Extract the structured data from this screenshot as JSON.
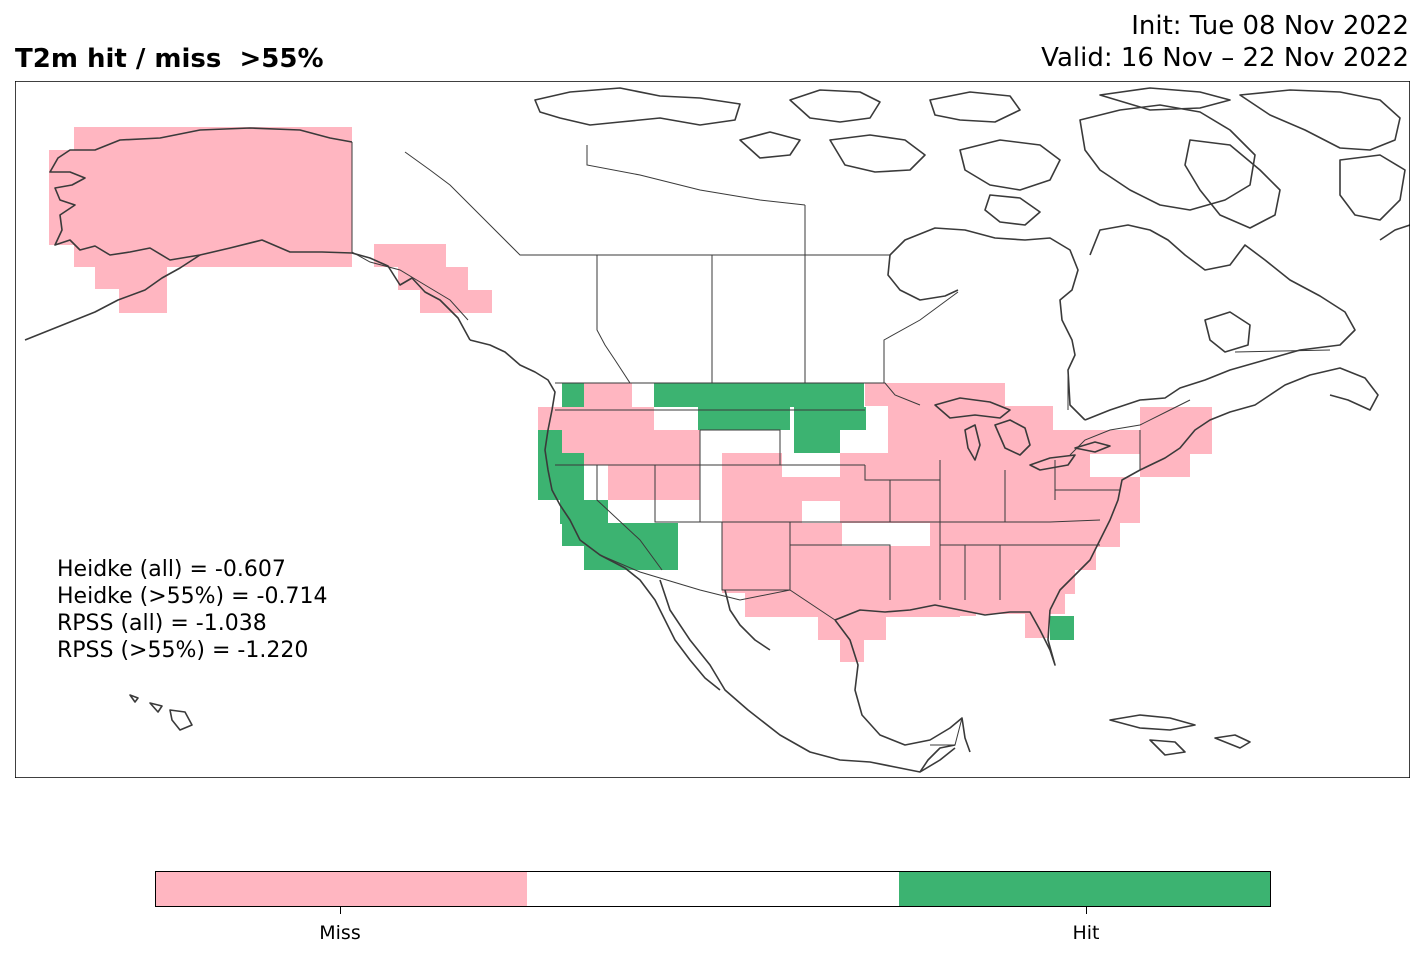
{
  "title": "T2m hit / miss  >55%",
  "init": "Init: Tue 08 Nov 2022",
  "valid": "Valid: 16 Nov – 22 Nov 2022",
  "stats": [
    "Heidke (all) = -0.607",
    "Heidke (>55%) = -0.714",
    "RPSS (all) = -1.038",
    "RPSS (>55%) = -1.220"
  ],
  "colors": {
    "miss": "#ffb6c1",
    "neutral": "#ffffff",
    "hit": "#3cb371",
    "coast": "#3a3a3a"
  },
  "legend": {
    "segments": [
      "miss",
      "neutral",
      "hit"
    ],
    "labels": [
      "Miss",
      "Hit"
    ]
  },
  "map_legend": {
    "miss": "Miss",
    "hit": "Hit"
  }
}
